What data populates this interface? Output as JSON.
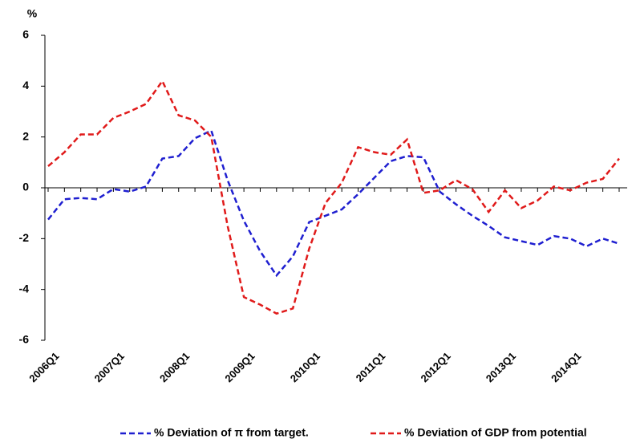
{
  "chart_data": {
    "type": "line",
    "y_label": "%",
    "categories": [
      "2006Q1",
      null,
      null,
      null,
      "2007Q1",
      null,
      null,
      null,
      "2008Q1",
      null,
      null,
      null,
      "2009Q1",
      null,
      null,
      null,
      "2010Q1",
      null,
      null,
      null,
      "2011Q1",
      null,
      null,
      null,
      "2012Q1",
      null,
      null,
      null,
      "2013Q1",
      null,
      null,
      null,
      "2014Q1",
      null,
      null,
      null
    ],
    "series": [
      {
        "name": "% Deviation of π from target.",
        "color": "#1f1fd0",
        "values": [
          -1.25,
          -0.45,
          -0.4,
          -0.45,
          -0.05,
          -0.15,
          0.05,
          1.15,
          1.25,
          1.95,
          2.25,
          0.3,
          -1.3,
          -2.5,
          -3.45,
          -2.7,
          -1.35,
          -1.1,
          -0.85,
          -0.25,
          0.4,
          1.05,
          1.25,
          1.2,
          -0.15,
          -0.65,
          -1.1,
          -1.5,
          -1.95,
          -2.1,
          -2.25,
          -1.9,
          -2.0,
          -2.3,
          -2.0,
          -2.2
        ]
      },
      {
        "name": "% Deviation of GDP from potential",
        "color": "#e01a1a",
        "values": [
          0.85,
          1.4,
          2.1,
          2.1,
          2.75,
          3.0,
          3.3,
          4.2,
          2.85,
          2.65,
          2.0,
          -1.5,
          -4.3,
          -4.6,
          -4.95,
          -4.75,
          -2.4,
          -0.6,
          0.2,
          1.6,
          1.4,
          1.3,
          1.9,
          -0.2,
          -0.1,
          0.3,
          -0.05,
          -0.95,
          -0.1,
          -0.8,
          -0.5,
          0.05,
          -0.1,
          0.2,
          0.35,
          1.15
        ]
      }
    ],
    "ylim": [
      -6,
      6
    ],
    "yticks": [
      -6,
      -4,
      -2,
      0,
      2,
      4,
      6
    ],
    "grid": false,
    "legend": "bottom"
  }
}
